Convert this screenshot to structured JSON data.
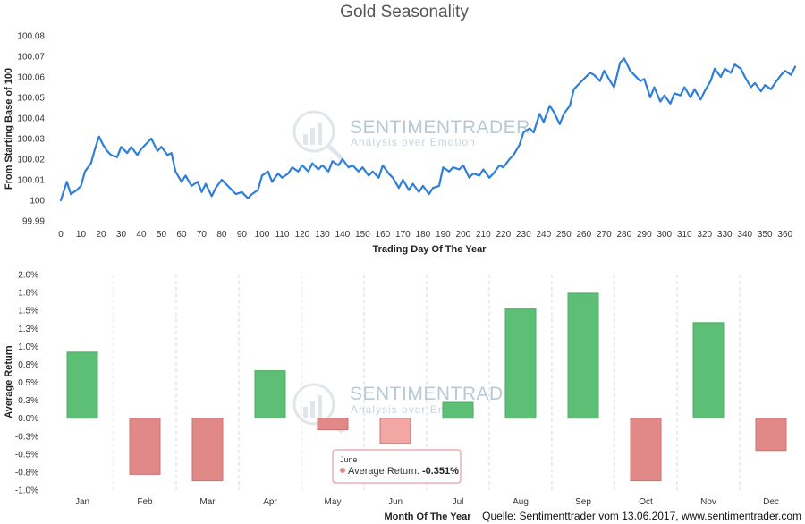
{
  "chart_data": [
    {
      "type": "line",
      "title": "Gold Seasonality",
      "xlabel": "Trading Day Of The Year",
      "ylabel": "From Starting Base of 100",
      "xlim": [
        0,
        365
      ],
      "ylim": [
        99.99,
        100.08
      ],
      "x_ticks": [
        "0",
        "10",
        "20",
        "30",
        "40",
        "50",
        "60",
        "70",
        "80",
        "90",
        "100",
        "110",
        "120",
        "130",
        "140",
        "150",
        "160",
        "170",
        "180",
        "190",
        "200",
        "210",
        "220",
        "230",
        "240",
        "250",
        "260",
        "270",
        "280",
        "290",
        "300",
        "310",
        "320",
        "330",
        "340",
        "350",
        "360"
      ],
      "y_ticks": [
        "100.08",
        "100.07",
        "100.06",
        "100.05",
        "100.04",
        "100.03",
        "100.02",
        "100.01",
        "100",
        "99.99"
      ],
      "color": "#2f7ed8",
      "x": [
        0,
        3,
        5,
        8,
        10,
        12,
        15,
        17,
        19,
        21,
        23,
        25,
        28,
        30,
        33,
        35,
        38,
        40,
        43,
        45,
        48,
        50,
        53,
        55,
        57,
        60,
        62,
        65,
        68,
        70,
        72,
        75,
        77,
        80,
        83,
        85,
        87,
        90,
        93,
        95,
        98,
        100,
        103,
        105,
        108,
        110,
        113,
        115,
        118,
        120,
        123,
        125,
        128,
        130,
        133,
        135,
        138,
        140,
        143,
        145,
        148,
        150,
        153,
        155,
        158,
        160,
        163,
        165,
        168,
        170,
        173,
        175,
        178,
        180,
        183,
        185,
        188,
        190,
        193,
        195,
        198,
        200,
        203,
        205,
        208,
        210,
        213,
        215,
        218,
        220,
        223,
        225,
        228,
        230,
        233,
        235,
        238,
        240,
        243,
        245,
        248,
        250,
        253,
        255,
        258,
        260,
        263,
        265,
        268,
        270,
        273,
        275,
        278,
        280,
        283,
        285,
        288,
        290,
        293,
        295,
        298,
        300,
        303,
        305,
        308,
        310,
        313,
        315,
        318,
        320,
        323,
        325,
        328,
        330,
        333,
        335,
        338,
        340,
        343,
        345,
        348,
        350,
        353,
        355,
        358,
        360,
        363,
        365
      ],
      "y": [
        100.0,
        100.009,
        100.003,
        100.005,
        100.007,
        100.014,
        100.018,
        100.025,
        100.031,
        100.027,
        100.024,
        100.022,
        100.021,
        100.026,
        100.023,
        100.026,
        100.022,
        100.025,
        100.028,
        100.03,
        100.024,
        100.026,
        100.022,
        100.023,
        100.014,
        100.009,
        100.012,
        100.007,
        100.009,
        100.004,
        100.008,
        100.002,
        100.006,
        100.01,
        100.007,
        100.005,
        100.003,
        100.004,
        100.001,
        100.003,
        100.005,
        100.012,
        100.014,
        100.009,
        100.013,
        100.011,
        100.013,
        100.016,
        100.014,
        100.017,
        100.014,
        100.018,
        100.015,
        100.017,
        100.014,
        100.019,
        100.017,
        100.02,
        100.016,
        100.017,
        100.014,
        100.016,
        100.012,
        100.014,
        100.011,
        100.017,
        100.013,
        100.011,
        100.006,
        100.01,
        100.005,
        100.008,
        100.004,
        100.007,
        100.003,
        100.006,
        100.007,
        100.016,
        100.014,
        100.016,
        100.015,
        100.017,
        100.011,
        100.013,
        100.012,
        100.015,
        100.011,
        100.013,
        100.017,
        100.016,
        100.02,
        100.022,
        100.027,
        100.033,
        100.035,
        100.033,
        100.042,
        100.038,
        100.046,
        100.043,
        100.037,
        100.042,
        100.046,
        100.054,
        100.057,
        100.059,
        100.062,
        100.061,
        100.058,
        100.063,
        100.058,
        100.055,
        100.067,
        100.069,
        100.063,
        100.061,
        100.058,
        100.059,
        100.05,
        100.055,
        100.048,
        100.051,
        100.047,
        100.052,
        100.051,
        100.055,
        100.05,
        100.054,
        100.049,
        100.053,
        100.058,
        100.064,
        100.06,
        100.064,
        100.062,
        100.066,
        100.064,
        100.06,
        100.055,
        100.057,
        100.053,
        100.056,
        100.054,
        100.057,
        100.061,
        100.063,
        100.061,
        100.065
      ]
    },
    {
      "type": "bar",
      "xlabel": "Month Of The Year",
      "ylabel": "Average Return",
      "ylim": [
        -1.0,
        2.0
      ],
      "y_ticks": [
        "2.0%",
        "1.8%",
        "1.5%",
        "1.3%",
        "1.0%",
        "0.8%",
        "0.5%",
        "0.3%",
        "0.0%",
        "-0.3%",
        "-0.5%",
        "-0.8%",
        "-1.0%"
      ],
      "categories": [
        "Jan",
        "Feb",
        "Mar",
        "Apr",
        "May",
        "Jun",
        "Jul",
        "Aug",
        "Sep",
        "Oct",
        "Nov",
        "Dec"
      ],
      "values": [
        0.92,
        -0.78,
        -0.87,
        0.66,
        -0.16,
        -0.351,
        0.22,
        1.52,
        1.74,
        -0.87,
        1.33,
        -0.45
      ],
      "positive_color": "#5cbf75",
      "negative_color": "#e08988",
      "highlight_color": "#f3a7a5",
      "grid": "vertical dashed between months"
    }
  ],
  "watermark": {
    "name": "SENTIMENTRADER",
    "tagline": "Analysis over Emotion"
  },
  "tooltip": {
    "month": "June",
    "label": "Average Return: ",
    "value": "-0.351%",
    "marker_color": "#e08988"
  },
  "source_note": "Quelle: Sentimenttrader vom 13.06.2017, www.sentimentrader.com"
}
